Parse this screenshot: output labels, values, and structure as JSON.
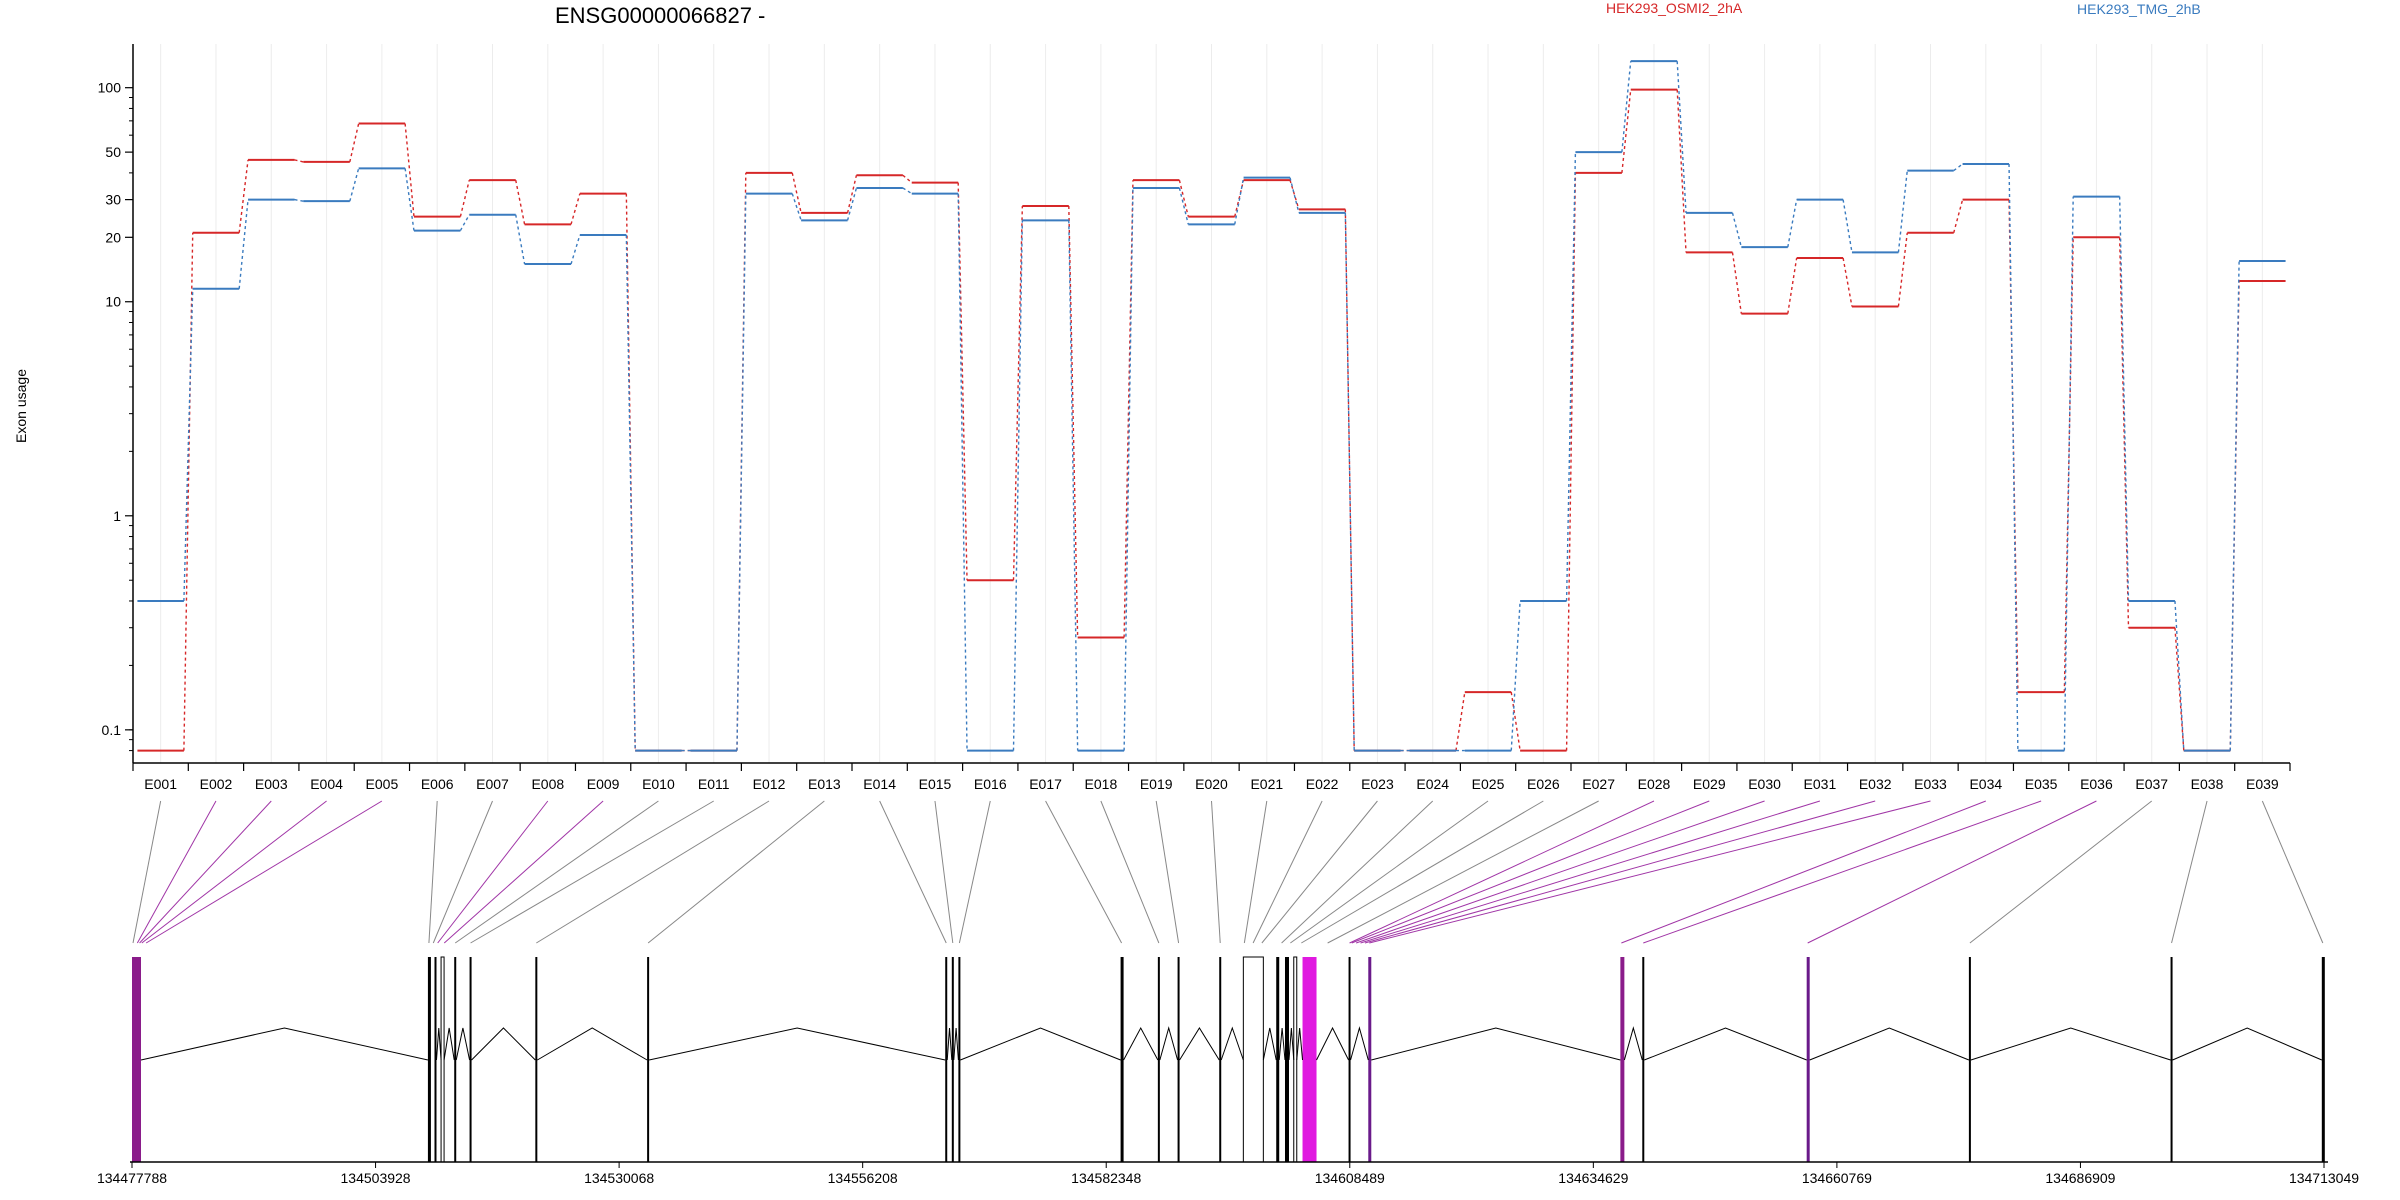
{
  "chart_data": {
    "type": "line",
    "title": "ENSG00000066827 -",
    "ylabel": "Exon usage",
    "yscale": "log",
    "ylim": [
      0.07,
      160
    ],
    "yticks": [
      "0.1",
      "1",
      "10",
      "20",
      "30",
      "50",
      "100"
    ],
    "grid": "vertical",
    "legend_placement": "top-right",
    "categories": [
      "E001",
      "E002",
      "E003",
      "E004",
      "E005",
      "E006",
      "E007",
      "E008",
      "E009",
      "E010",
      "E011",
      "E012",
      "E013",
      "E014",
      "E015",
      "E016",
      "E017",
      "E018",
      "E019",
      "E020",
      "E021",
      "E022",
      "E023",
      "E024",
      "E025",
      "E026",
      "E027",
      "E028",
      "E029",
      "E030",
      "E031",
      "E032",
      "E033",
      "E034",
      "E035",
      "E036",
      "E037",
      "E038",
      "E039"
    ],
    "series": [
      {
        "name": "HEK293_OSMI2_2hA",
        "color": "#d62728",
        "values": [
          0.08,
          21,
          46,
          45,
          68,
          25,
          37,
          23,
          32,
          0.08,
          0.08,
          40,
          26,
          39,
          36,
          0.5,
          28,
          0.27,
          37,
          25,
          37,
          27,
          0.08,
          0.08,
          0.15,
          0.08,
          40,
          98,
          17,
          8.8,
          16,
          9.5,
          21,
          30,
          0.15,
          20,
          0.3,
          0.08,
          12.5
        ]
      },
      {
        "name": "HEK293_TMG_2hB",
        "color": "#3a7bbf",
        "values": [
          0.4,
          11.5,
          30,
          29.5,
          42,
          21.5,
          25.5,
          15,
          20.5,
          0.08,
          0.08,
          32,
          24,
          34,
          32,
          0.08,
          24,
          0.08,
          34,
          23,
          38,
          26,
          0.08,
          0.08,
          0.08,
          0.4,
          50,
          133,
          26,
          18,
          30,
          17,
          41,
          44,
          0.08,
          31,
          0.4,
          0.08,
          15.5
        ]
      }
    ],
    "genomic_axis": {
      "ticks": [
        "134477788",
        "134503928",
        "134530068",
        "134556208",
        "134582348",
        "134608489",
        "134634629",
        "134660769",
        "134686909",
        "134713049"
      ]
    }
  },
  "gene_model": {
    "highlight_color": "#e01ae0",
    "exon_color": "#000000"
  }
}
